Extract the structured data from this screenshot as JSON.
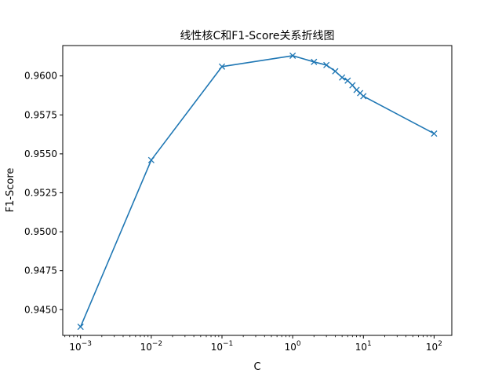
{
  "chart_data": {
    "type": "line",
    "title": "线性核C和F1-Score关系折线图",
    "xlabel": "C",
    "ylabel": "F1-Score",
    "xscale": "log",
    "xlim": [
      0.00056,
      178
    ],
    "ylim": [
      0.94335,
      0.96195
    ],
    "xticks": [
      0.001,
      0.01,
      0.1,
      1,
      10,
      100
    ],
    "xtick_labels": [
      {
        "base": "10",
        "exp": "−3"
      },
      {
        "base": "10",
        "exp": "−2"
      },
      {
        "base": "10",
        "exp": "−1"
      },
      {
        "base": "10",
        "exp": "0"
      },
      {
        "base": "10",
        "exp": "1"
      },
      {
        "base": "10",
        "exp": "2"
      }
    ],
    "yticks": [
      0.945,
      0.9475,
      0.95,
      0.9525,
      0.955,
      0.9575,
      0.96
    ],
    "ytick_labels": [
      "0.9450",
      "0.9475",
      "0.9500",
      "0.9525",
      "0.9550",
      "0.9575",
      "0.9600"
    ],
    "grid": false,
    "legend": "none",
    "series": [
      {
        "color": "#1f77b4",
        "marker": "x",
        "x": [
          0.001,
          0.01,
          0.1,
          1,
          2,
          3,
          4,
          5,
          6,
          7,
          8,
          9,
          10,
          100
        ],
        "y": [
          0.9439,
          0.9546,
          0.9606,
          0.9613,
          0.9609,
          0.9607,
          0.9603,
          0.9599,
          0.9597,
          0.9594,
          0.9591,
          0.9589,
          0.9587,
          0.9563
        ]
      }
    ]
  }
}
